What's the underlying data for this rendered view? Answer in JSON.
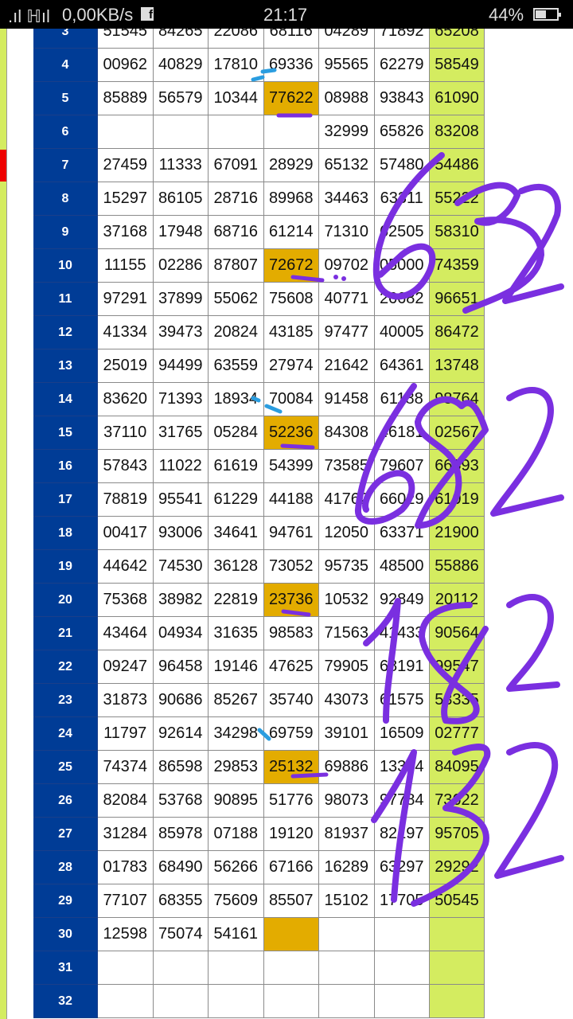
{
  "status_bar": {
    "network_speed": "0,00KB/s",
    "app_notification": "f",
    "time": "21:17",
    "battery": "44%"
  },
  "colors": {
    "row_number_bg": "#003c96",
    "highlight": "#e3ac00",
    "last_column": "#d4ec60",
    "ink_purple": "#7a2fe0",
    "ink_blue": "#2a9de0"
  },
  "table": {
    "rows": [
      {
        "n": "3",
        "v": [
          "51545",
          "84265",
          "22086",
          "68116",
          "04289",
          "71892",
          "65208"
        ],
        "hl": -1
      },
      {
        "n": "4",
        "v": [
          "00962",
          "40829",
          "17810",
          "69336",
          "95565",
          "62279",
          "58549"
        ],
        "hl": -1
      },
      {
        "n": "5",
        "v": [
          "85889",
          "56579",
          "10344",
          "77622",
          "08988",
          "93843",
          "61090"
        ],
        "hl": 3
      },
      {
        "n": "6",
        "v": [
          "",
          "",
          "",
          "",
          "32999",
          "65826",
          "83208"
        ],
        "hl": -1
      },
      {
        "n": "7",
        "v": [
          "27459",
          "11333",
          "67091",
          "28929",
          "65132",
          "57480",
          "54486"
        ],
        "hl": -1
      },
      {
        "n": "8",
        "v": [
          "15297",
          "86105",
          "28716",
          "89968",
          "34463",
          "63311",
          "55222"
        ],
        "hl": -1
      },
      {
        "n": "9",
        "v": [
          "37168",
          "17948",
          "68716",
          "61214",
          "71310",
          "62505",
          "58310"
        ],
        "hl": -1
      },
      {
        "n": "10",
        "v": [
          "11155",
          "02286",
          "87807",
          "72672",
          "09702",
          "05000",
          "74359"
        ],
        "hl": 3
      },
      {
        "n": "11",
        "v": [
          "97291",
          "37899",
          "55062",
          "75608",
          "40771",
          "26682",
          "96651"
        ],
        "hl": -1
      },
      {
        "n": "12",
        "v": [
          "41334",
          "39473",
          "20824",
          "43185",
          "97477",
          "40005",
          "86472"
        ],
        "hl": -1
      },
      {
        "n": "13",
        "v": [
          "25019",
          "94499",
          "63559",
          "27974",
          "21642",
          "64361",
          "13748"
        ],
        "hl": -1
      },
      {
        "n": "14",
        "v": [
          "83620",
          "71393",
          "18934",
          "70084",
          "91458",
          "61188",
          "98764"
        ],
        "hl": -1
      },
      {
        "n": "15",
        "v": [
          "37110",
          "31765",
          "05284",
          "52236",
          "84308",
          "46181",
          "02567"
        ],
        "hl": 3
      },
      {
        "n": "16",
        "v": [
          "57843",
          "11022",
          "61619",
          "54399",
          "73585",
          "79607",
          "66593"
        ],
        "hl": -1
      },
      {
        "n": "17",
        "v": [
          "78819",
          "95541",
          "61229",
          "44188",
          "41762",
          "66029",
          "61019"
        ],
        "hl": -1
      },
      {
        "n": "18",
        "v": [
          "00417",
          "93006",
          "34641",
          "94761",
          "12050",
          "63371",
          "21900"
        ],
        "hl": -1
      },
      {
        "n": "19",
        "v": [
          "44642",
          "74530",
          "36128",
          "73052",
          "95735",
          "48500",
          "55886"
        ],
        "hl": -1
      },
      {
        "n": "20",
        "v": [
          "75368",
          "38982",
          "22819",
          "23736",
          "10532",
          "92849",
          "20112"
        ],
        "hl": 3
      },
      {
        "n": "21",
        "v": [
          "43464",
          "04934",
          "31635",
          "98583",
          "71563",
          "41433",
          "90564"
        ],
        "hl": -1
      },
      {
        "n": "22",
        "v": [
          "09247",
          "96458",
          "19146",
          "47625",
          "79905",
          "68191",
          "99547"
        ],
        "hl": -1
      },
      {
        "n": "23",
        "v": [
          "31873",
          "90686",
          "85267",
          "35740",
          "43073",
          "61575",
          "53335"
        ],
        "hl": -1
      },
      {
        "n": "24",
        "v": [
          "11797",
          "92614",
          "34298",
          "69759",
          "39101",
          "16509",
          "02777"
        ],
        "hl": -1
      },
      {
        "n": "25",
        "v": [
          "74374",
          "86598",
          "29853",
          "25132",
          "69886",
          "13344",
          "84095"
        ],
        "hl": 3
      },
      {
        "n": "26",
        "v": [
          "82084",
          "53768",
          "90895",
          "51776",
          "98073",
          "97784",
          "73622"
        ],
        "hl": -1
      },
      {
        "n": "27",
        "v": [
          "31284",
          "85978",
          "07188",
          "19120",
          "81937",
          "82197",
          "95705"
        ],
        "hl": -1
      },
      {
        "n": "28",
        "v": [
          "01783",
          "68490",
          "56266",
          "67166",
          "16289",
          "63297",
          "29292"
        ],
        "hl": -1
      },
      {
        "n": "29",
        "v": [
          "77107",
          "68355",
          "75609",
          "85507",
          "15102",
          "17705",
          "50545"
        ],
        "hl": -1
      },
      {
        "n": "30",
        "v": [
          "12598",
          "75074",
          "54161",
          "",
          "",
          "",
          ""
        ],
        "hl": 3
      },
      {
        "n": "31",
        "v": [
          "",
          "",
          "",
          "",
          "",
          "",
          ""
        ],
        "hl": -1
      },
      {
        "n": "32",
        "v": [
          "",
          "",
          "",
          "",
          "",
          "",
          ""
        ],
        "hl": -1
      }
    ]
  },
  "handwritten_annotations": [
    "632",
    "682",
    "182",
    "132"
  ]
}
